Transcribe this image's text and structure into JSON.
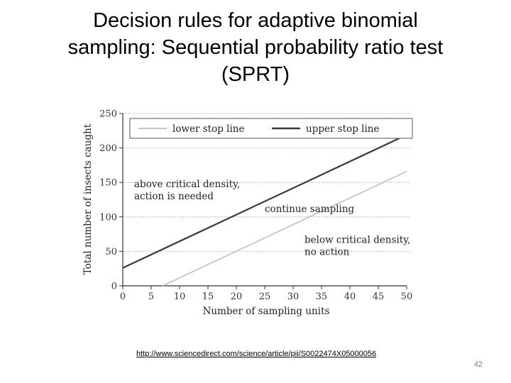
{
  "slide": {
    "title_lines": [
      "Decision rules for adaptive binomial",
      "sampling: Sequential probability ratio test",
      "(SPRT)"
    ],
    "source_url": "http://www.sciencedirect.com/science/article/pii/S0022474X05000056",
    "page_number": "42"
  },
  "chart_data": {
    "type": "line",
    "xlabel": "Number of sampling units",
    "ylabel": "Total number of insects caught",
    "xlim": [
      0,
      50
    ],
    "ylim": [
      0,
      250
    ],
    "x_ticks": [
      0,
      5,
      10,
      15,
      20,
      25,
      30,
      35,
      40,
      45,
      50
    ],
    "y_ticks": [
      0,
      50,
      100,
      150,
      200,
      250
    ],
    "grid": "horizontal",
    "legend_position": "top",
    "series": [
      {
        "name": "lower stop line",
        "color": "#c2c6cb",
        "x": [
          7,
          50
        ],
        "y": [
          0,
          166
        ]
      },
      {
        "name": "upper stop line",
        "color": "#3a3a3a",
        "x": [
          0,
          50
        ],
        "y": [
          26,
          219
        ]
      }
    ],
    "annotations": [
      {
        "lines": [
          "above critical density,",
          "action is needed"
        ],
        "x": 2,
        "y": 143
      },
      {
        "lines": [
          "continue sampling"
        ],
        "x": 25,
        "y": 107
      },
      {
        "lines": [
          "below critical density,",
          "no action"
        ],
        "x": 32,
        "y": 62
      }
    ]
  }
}
